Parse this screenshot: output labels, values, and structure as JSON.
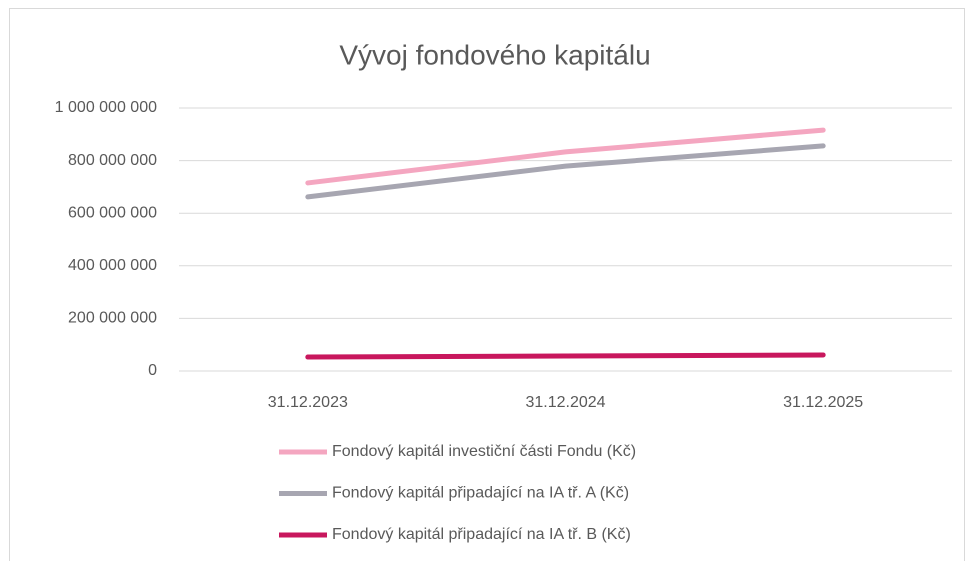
{
  "chart_data": {
    "type": "line",
    "title": "Vývoj fondového kapitálu",
    "categories": [
      "31.12.2023",
      "31.12.2024",
      "31.12.2025"
    ],
    "series": [
      {
        "name": "Fondový kapitál investiční části Fondu (Kč)",
        "color": "#f4a6c0",
        "values": [
          715000000,
          833000000,
          916000000
        ]
      },
      {
        "name": "Fondový kapitál připadající na IA tř. A (Kč)",
        "color": "#a7a6b1",
        "values": [
          662000000,
          779000000,
          856000000
        ]
      },
      {
        "name": "Fondový kapitál připadající na IA tř. B (Kč)",
        "color": "#c8175d",
        "values": [
          53000000,
          57000000,
          61000000
        ]
      }
    ],
    "ylim": [
      0,
      1000000000
    ],
    "yticks": [
      0,
      {
        "value": 200000000,
        "label": "200 000 000"
      },
      {
        "value": 400000000,
        "label": "400 000 000"
      },
      {
        "value": 600000000,
        "label": "600 000 000"
      },
      {
        "value": 800000000,
        "label": "800 000 000"
      },
      {
        "value": 1000000000,
        "label": "1 000 000 000"
      }
    ],
    "grid": true,
    "legend": "bottom"
  }
}
